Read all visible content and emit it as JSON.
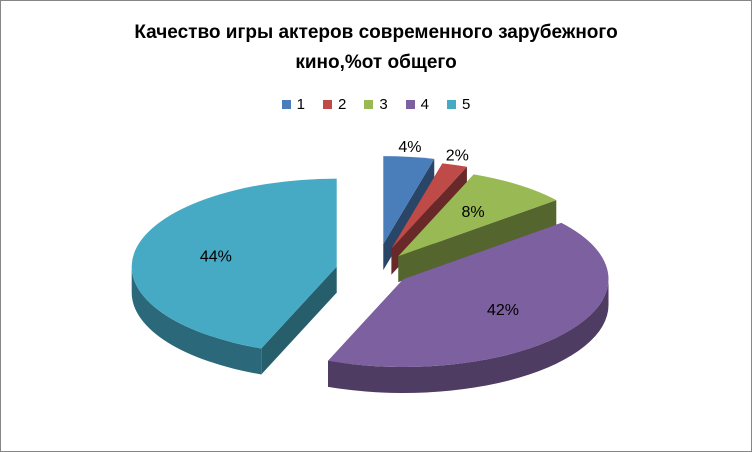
{
  "chart_data": {
    "type": "pie",
    "title_line1": "Качество игры актеров современного зарубежного",
    "title_line2": "кино,%от общего",
    "categories": [
      "1",
      "2",
      "3",
      "4",
      "5"
    ],
    "values": [
      4,
      2,
      8,
      42,
      44
    ],
    "labels": [
      "4%",
      "2%",
      "8%",
      "42%",
      "44%"
    ],
    "colors": [
      "#4A7EBB",
      "#BE4B48",
      "#98B954",
      "#7D60A0",
      "#46AAC5"
    ],
    "legend_position": "top",
    "style": "3d-exploded"
  }
}
